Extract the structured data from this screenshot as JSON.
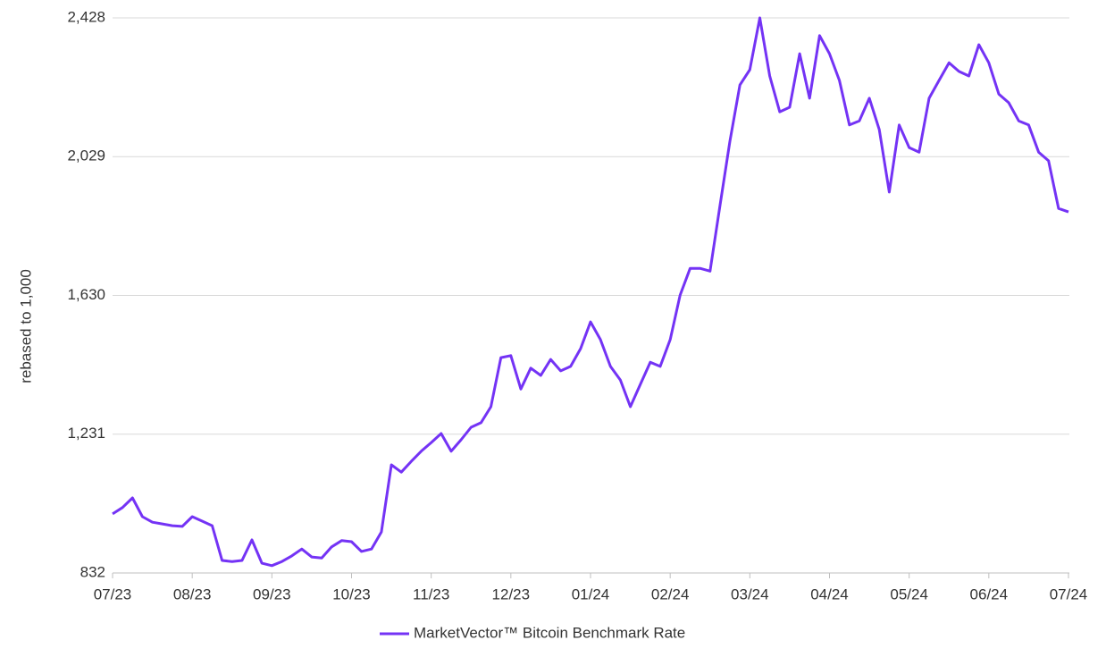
{
  "chart_data": {
    "type": "line",
    "y_label": "rebased to 1,000",
    "categories": [
      "07/23",
      null,
      null,
      null,
      null,
      null,
      null,
      null,
      "08/23",
      null,
      null,
      null,
      null,
      null,
      null,
      null,
      "09/23",
      null,
      null,
      null,
      null,
      null,
      null,
      null,
      "10/23",
      null,
      null,
      null,
      null,
      null,
      null,
      null,
      "11/23",
      null,
      null,
      null,
      null,
      null,
      null,
      null,
      "12/23",
      null,
      null,
      null,
      null,
      null,
      null,
      null,
      "01/24",
      null,
      null,
      null,
      null,
      null,
      null,
      null,
      "02/24",
      null,
      null,
      null,
      null,
      null,
      null,
      null,
      "03/24",
      null,
      null,
      null,
      null,
      null,
      null,
      null,
      "04/24",
      null,
      null,
      null,
      null,
      null,
      null,
      null,
      "05/24",
      null,
      null,
      null,
      null,
      null,
      null,
      null,
      "06/24",
      null,
      null,
      null,
      null,
      null,
      null,
      null,
      "07/24"
    ],
    "series": [
      {
        "name": "MarketVector™ Bitcoin Benchmark Rate",
        "color": "#7433f5",
        "values": [
          1002,
          1020,
          1048,
          994,
          978,
          973,
          968,
          966,
          994,
          981,
          968,
          868,
          865,
          868,
          927,
          860,
          853,
          865,
          881,
          901,
          878,
          875,
          907,
          925,
          922,
          894,
          901,
          950,
          1143,
          1122,
          1153,
          1182,
          1207,
          1233,
          1182,
          1215,
          1251,
          1264,
          1310,
          1451,
          1457,
          1361,
          1421,
          1400,
          1446,
          1413,
          1426,
          1477,
          1554,
          1503,
          1426,
          1387,
          1310,
          1374,
          1438,
          1426,
          1503,
          1631,
          1708,
          1708,
          1700,
          1888,
          2073,
          2235,
          2279,
          2428,
          2261,
          2158,
          2171,
          2325,
          2197,
          2377,
          2325,
          2248,
          2120,
          2132,
          2197,
          2107,
          1927,
          2120,
          2055,
          2042,
          2197,
          2248,
          2299,
          2274,
          2261,
          2351,
          2299,
          2209,
          2184,
          2132,
          2120,
          2042,
          2017,
          1880,
          1870
        ]
      }
    ],
    "ylim": [
      832,
      2428
    ],
    "yticks": [
      832,
      {
        "value": 1231,
        "label": "1,231"
      },
      {
        "value": 1630,
        "label": "1,630"
      },
      {
        "value": 2029,
        "label": "2,029"
      },
      {
        "value": 2428,
        "label": "2,428"
      }
    ],
    "grid": true,
    "legend": "bottom"
  }
}
